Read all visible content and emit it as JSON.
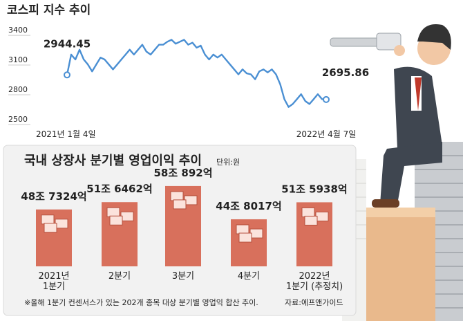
{
  "chart_data": [
    {
      "type": "line",
      "title": "코스피 지수 추이",
      "categories": [
        "2021년 1월 4일",
        null,
        null,
        null,
        null,
        null,
        null,
        null,
        null,
        null,
        null,
        null,
        null,
        null,
        null,
        null,
        null,
        null,
        null,
        null,
        null,
        null,
        null,
        null,
        null,
        null,
        null,
        null,
        null,
        null,
        null,
        null,
        null,
        null,
        null,
        null,
        null,
        null,
        null,
        null,
        null,
        null,
        null,
        null,
        null,
        null,
        null,
        null,
        null,
        null,
        null,
        null,
        null,
        null,
        null,
        null,
        null,
        null,
        null,
        null,
        null,
        null,
        "2022년 4월 7일"
      ],
      "values": [
        2944.45,
        3150,
        3100,
        3200,
        3100,
        3050,
        2980,
        3050,
        3120,
        3100,
        3050,
        3000,
        3050,
        3100,
        3150,
        3200,
        3150,
        3200,
        3250,
        3180,
        3150,
        3200,
        3250,
        3250,
        3280,
        3300,
        3260,
        3280,
        3300,
        3250,
        3270,
        3220,
        3240,
        3150,
        3100,
        3150,
        3120,
        3150,
        3100,
        3050,
        3000,
        2950,
        3000,
        2960,
        2950,
        2900,
        2980,
        3000,
        2970,
        3000,
        2950,
        2850,
        2700,
        2620,
        2650,
        2700,
        2750,
        2680,
        2650,
        2700,
        2750,
        2700,
        2695.86
      ],
      "color": "#4a8fd3",
      "ylim": [
        2450,
        3450
      ],
      "yticks": [
        2500,
        2800,
        3100,
        3400
      ]
    },
    {
      "type": "bar",
      "title": "국내 상장사 분기별 영업이익 추이",
      "unit": "단위:원",
      "categories": [
        "2021년\n1분기",
        "2분기",
        "3분기",
        "4분기",
        "2022년\n1분기 (추정치)"
      ],
      "values": [
        487324,
        516462,
        580892,
        448017,
        515938
      ],
      "value_labels": [
        "48조 7324억",
        "51조 6462억",
        "58조 892억",
        "44조 8017억",
        "51조 5938억"
      ],
      "color": "#d8705c",
      "ylim": [
        260000,
        600000
      ],
      "footnote": "※올해 1분기 컨센서스가 있는 202개 종목 대상 분기별 영업익 합산 추이.",
      "source": "자료:에프앤가이드"
    }
  ]
}
